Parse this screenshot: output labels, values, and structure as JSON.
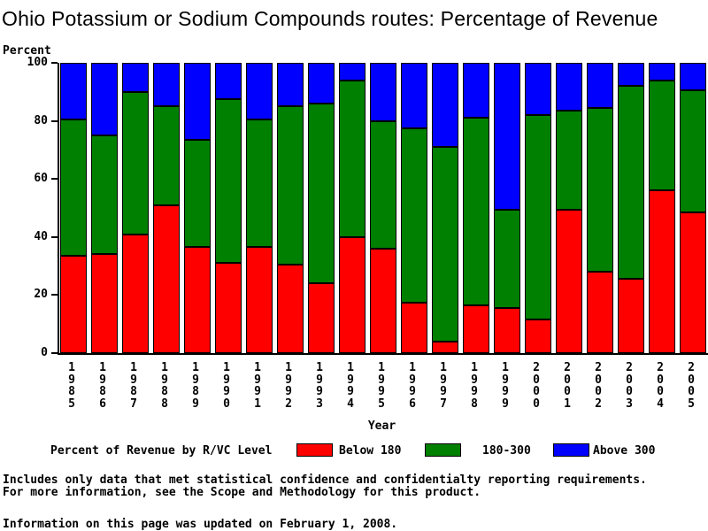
{
  "page": {
    "title": "Ohio Potassium or Sodium Compounds routes: Percentage of Revenue",
    "footnote_line1": "Includes only data that met statistical confidence and confidentialty reporting requirements.",
    "footnote_line2": "For more information, see the Scope and Methodology for this product.",
    "updated_line": "Information on this page was updated on February 1, 2008."
  },
  "colors": {
    "below_180": "#ff0000",
    "mid_180_300": "#008000",
    "above_300": "#0000ff",
    "axis": "#000000",
    "background": "#ffffff"
  },
  "chart_data": {
    "type": "bar",
    "stacked": true,
    "title": "Ohio Potassium or Sodium Compounds routes: Percentage of Revenue",
    "xlabel": "Year",
    "ylabel": "Percent",
    "ylim": [
      0,
      100
    ],
    "yticks": [
      0,
      20,
      40,
      60,
      80,
      100
    ],
    "grid": false,
    "legend_position": "bottom",
    "categories": [
      "1985",
      "1986",
      "1987",
      "1988",
      "1989",
      "1990",
      "1991",
      "1992",
      "1993",
      "1994",
      "1995",
      "1996",
      "1997",
      "1998",
      "1999",
      "2000",
      "2001",
      "2002",
      "2003",
      "2004",
      "2005"
    ],
    "series": [
      {
        "name": "Below 180",
        "color": "#ff0000",
        "values": [
          33.5,
          34,
          41,
          51,
          36.5,
          31,
          36.5,
          30.5,
          24,
          40,
          36,
          17.5,
          4,
          16.5,
          15.5,
          11.5,
          49.5,
          28,
          25.5,
          56,
          48.5
        ]
      },
      {
        "name": "180-300",
        "color": "#008000",
        "values": [
          47,
          41,
          49,
          34,
          37,
          56.5,
          44,
          54.5,
          62,
          54,
          44,
          60,
          67,
          64.5,
          34,
          70.5,
          34,
          56.5,
          66.5,
          38,
          42
        ]
      },
      {
        "name": "Above 300",
        "color": "#0000ff",
        "values": [
          19.5,
          25,
          10,
          15,
          26.5,
          12.5,
          19.5,
          15,
          14,
          6,
          20,
          22.5,
          29,
          19,
          50.5,
          18,
          16.5,
          15.5,
          8,
          6,
          9.5
        ]
      }
    ],
    "legend": {
      "label": "Percent of Revenue by R/VC Level",
      "entries": [
        {
          "label": "Below 180",
          "color": "#ff0000"
        },
        {
          "label": "180-300",
          "color": "#008000"
        },
        {
          "label": "Above 300",
          "color": "#0000ff"
        }
      ]
    }
  }
}
